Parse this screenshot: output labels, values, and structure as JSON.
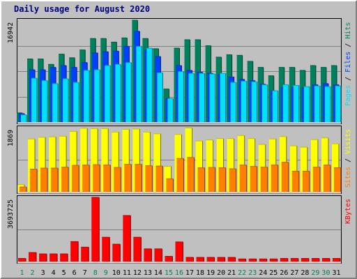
{
  "title": "Daily usage for August 2020",
  "days": [
    "1",
    "2",
    "3",
    "4",
    "5",
    "6",
    "7",
    "8",
    "9",
    "10",
    "11",
    "12",
    "13",
    "14",
    "15",
    "16",
    "17",
    "18",
    "19",
    "20",
    "21",
    "22",
    "23",
    "24",
    "25",
    "26",
    "27",
    "28",
    "29",
    "30",
    "31"
  ],
  "weekend_days": [
    1,
    2,
    8,
    9,
    15,
    16,
    22,
    23,
    29,
    30
  ],
  "colors": {
    "hits": "#00805c",
    "files": "#0040ff",
    "pages": "#00e0ff",
    "visits": "#ffff00",
    "sites": "#ff8000",
    "kbytes": "#ff0000",
    "title": "#00007f",
    "weekday_label": "#000000",
    "weekend_label": "#00805c"
  },
  "icon": "none",
  "chart_data": [
    {
      "type": "bar",
      "title": "Daily usage for August 2020",
      "categories": [
        "1",
        "2",
        "3",
        "4",
        "5",
        "6",
        "7",
        "8",
        "9",
        "10",
        "11",
        "12",
        "13",
        "14",
        "15",
        "16",
        "17",
        "18",
        "19",
        "20",
        "21",
        "22",
        "23",
        "24",
        "25",
        "26",
        "27",
        "28",
        "29",
        "30",
        "31"
      ],
      "y_max_label": "16942",
      "ylim": [
        0,
        16942
      ],
      "legend": [
        {
          "text": "Hits",
          "color": "#00805c"
        },
        {
          "text": "Files",
          "color": "#0040ff"
        },
        {
          "text": "Pages",
          "color": "#00e0ff"
        }
      ],
      "legend_position": "right",
      "series": [
        {
          "name": "Hits",
          "values": [
            1520,
            10500,
            10500,
            9600,
            11300,
            10700,
            12000,
            13900,
            13900,
            13300,
            14000,
            16942,
            13900,
            12200,
            5500,
            12300,
            13700,
            13700,
            12700,
            10800,
            11200,
            11100,
            10100,
            9100,
            7700,
            9100,
            9100,
            8600,
            9400,
            9100,
            9400
          ]
        },
        {
          "name": "Files",
          "values": [
            1400,
            8700,
            8700,
            9100,
            9400,
            9100,
            9900,
            11500,
            11700,
            11800,
            12600,
            15100,
            12000,
            10900,
            3900,
            9400,
            8600,
            8300,
            8100,
            7900,
            7500,
            7100,
            6900,
            6300,
            5200,
            5800,
            5800,
            5700,
            6200,
            6400,
            6200
          ]
        },
        {
          "name": "Pages",
          "values": [
            1200,
            7300,
            6900,
            6400,
            7200,
            6600,
            8600,
            8700,
            9400,
            9600,
            9900,
            12600,
            12300,
            8200,
            3900,
            8400,
            8100,
            8100,
            8000,
            8100,
            6600,
            6800,
            6700,
            6200,
            5200,
            6200,
            6100,
            5900,
            6000,
            5900,
            6000
          ]
        }
      ]
    },
    {
      "type": "bar",
      "categories": [
        "1",
        "2",
        "3",
        "4",
        "5",
        "6",
        "7",
        "8",
        "9",
        "10",
        "11",
        "12",
        "13",
        "14",
        "15",
        "16",
        "17",
        "18",
        "19",
        "20",
        "21",
        "22",
        "23",
        "24",
        "25",
        "26",
        "27",
        "28",
        "29",
        "30",
        "31"
      ],
      "y_max_label": "1869",
      "ylim": [
        0,
        1869
      ],
      "legend": [
        {
          "text": "Visits",
          "color": "#ffff00"
        },
        {
          "text": "Sites",
          "color": "#ff8000"
        }
      ],
      "legend_position": "right",
      "series": [
        {
          "name": "Visits",
          "values": [
            210,
            1540,
            1590,
            1600,
            1620,
            1760,
            1850,
            1840,
            1840,
            1740,
            1820,
            1830,
            1740,
            1690,
            740,
            1670,
            1860,
            1480,
            1510,
            1550,
            1550,
            1640,
            1550,
            1380,
            1540,
            1610,
            1340,
            1300,
            1520,
            1570,
            1400
          ]
        },
        {
          "name": "Sites",
          "values": [
            140,
            660,
            690,
            690,
            720,
            770,
            780,
            790,
            780,
            710,
            800,
            800,
            760,
            750,
            380,
            970,
            1000,
            700,
            710,
            700,
            670,
            780,
            740,
            720,
            780,
            860,
            600,
            600,
            720,
            780,
            700
          ]
        }
      ]
    },
    {
      "type": "bar",
      "categories": [
        "1",
        "2",
        "3",
        "4",
        "5",
        "6",
        "7",
        "8",
        "9",
        "10",
        "11",
        "12",
        "13",
        "14",
        "15",
        "16",
        "17",
        "18",
        "19",
        "20",
        "21",
        "22",
        "23",
        "24",
        "25",
        "26",
        "27",
        "28",
        "29",
        "30",
        "31"
      ],
      "y_max_label": "3693725",
      "ylim": [
        0,
        3693725
      ],
      "legend": [
        {
          "text": "KBytes",
          "color": "#ff0000"
        }
      ],
      "legend_position": "right",
      "series": [
        {
          "name": "KBytes",
          "values": [
            180000,
            520000,
            440000,
            440000,
            440000,
            1150000,
            830000,
            3693725,
            1400000,
            1000000,
            2650000,
            1400000,
            730000,
            730000,
            300000,
            1130000,
            240000,
            240000,
            240000,
            240000,
            240000,
            150000,
            150000,
            150000,
            150000,
            180000,
            180000,
            180000,
            180000,
            180000,
            180000
          ]
        }
      ]
    }
  ]
}
